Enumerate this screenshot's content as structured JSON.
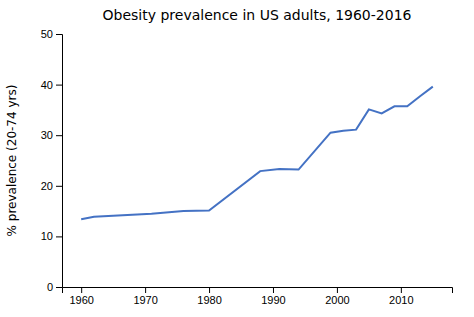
{
  "chart_data": {
    "type": "line",
    "title": "Obesity prevalence in US adults, 1960-2016",
    "ylabel": "% prevalence (20-74 yrs)",
    "x": [
      1960,
      1962,
      1971,
      1976,
      1980,
      1988,
      1991,
      1994,
      1999,
      2001,
      2003,
      2005,
      2007,
      2009,
      2011,
      2013,
      2015
    ],
    "values": [
      13.4,
      13.9,
      14.5,
      15.0,
      15.1,
      22.9,
      23.3,
      23.2,
      30.5,
      30.9,
      31.1,
      35.1,
      34.3,
      35.7,
      35.7,
      37.7,
      39.6
    ],
    "color": "#4472c4",
    "xlim": [
      1957,
      2018
    ],
    "ylim": [
      0,
      50
    ],
    "xticks": [
      1960,
      1970,
      1980,
      1990,
      2000,
      2010
    ],
    "yticks": [
      0,
      10,
      20,
      30,
      40,
      50
    ],
    "grid": false
  }
}
